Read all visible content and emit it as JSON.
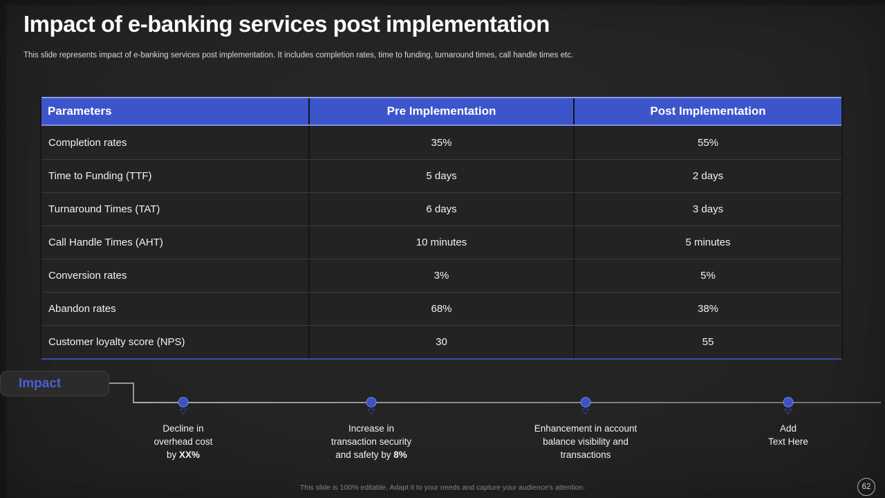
{
  "slide": {
    "title": "Impact of e-banking services post implementation",
    "subtitle": "This slide represents impact of e-banking services post implementation. It includes completion rates, time to funding, turnaround times, call handle times etc.",
    "footer_note": "This slide is 100% editable. Adapt it to your needs and capture your audience's attention.",
    "page_number": "62"
  },
  "colors": {
    "header_blue": "#3d55cb",
    "header_inner_line": "#8d9ae8",
    "table_bottom_border": "#3a4cae",
    "impact_text_blue": "#4a5ed2",
    "dot_blue": "#3e52c6",
    "row_bg": "#232323",
    "slide_bg": "#242424",
    "timeline_line_gray": "#8d8d8d"
  },
  "table": {
    "headers": [
      "Parameters",
      "Pre Implementation",
      "Post Implementation"
    ],
    "rows": [
      {
        "param": "Completion rates",
        "pre": "35%",
        "post": "55%"
      },
      {
        "param": "Time to Funding (TTF)",
        "pre": "5 days",
        "post": "2 days"
      },
      {
        "param": "Turnaround Times (TAT)",
        "pre": "6 days",
        "post": "3 days"
      },
      {
        "param": "Call Handle Times (AHT)",
        "pre": "10 minutes",
        "post": "5 minutes"
      },
      {
        "param": "Conversion rates",
        "pre": "3%",
        "post": "5%"
      },
      {
        "param": "Abandon rates",
        "pre": "68%",
        "post": "38%"
      },
      {
        "param": "Customer loyalty score (NPS)",
        "pre": "30",
        "post": "55"
      }
    ]
  },
  "timeline": {
    "label": "Impact",
    "items": [
      {
        "line1": "Decline in",
        "line2": "overhead cost",
        "line3": "by ",
        "line3_bold": "XX%"
      },
      {
        "line1": "Increase in",
        "line2": "transaction security",
        "line3": "and safety by ",
        "line3_bold": "8%"
      },
      {
        "line1": "Enhancement in account",
        "line2": "balance visibility and",
        "line3": "transactions",
        "line3_bold": ""
      },
      {
        "line1": "Add",
        "line2": "Text Here",
        "line3": "",
        "line3_bold": ""
      }
    ]
  }
}
